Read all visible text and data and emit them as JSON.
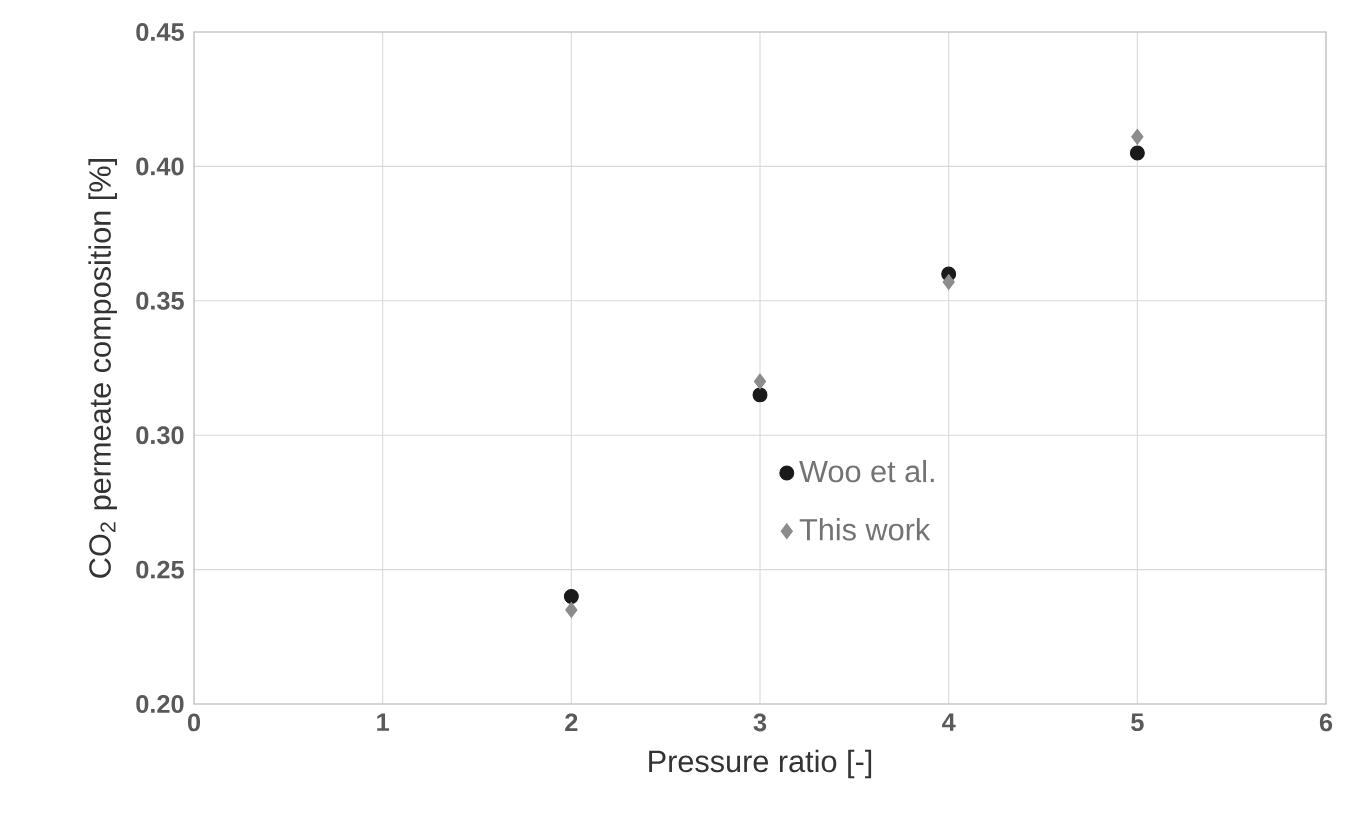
{
  "chart_data": {
    "type": "scatter",
    "xlabel": "Pressure ratio [-]",
    "ylabel": "CO$_{2}$ permeate composition [%]",
    "xlim": [
      0,
      6
    ],
    "xticks": [
      0,
      1,
      2,
      3,
      4,
      5,
      6
    ],
    "ylim": [
      0.2,
      0.45
    ],
    "yticks": [
      {
        "value": 0.2,
        "label": "0.20"
      },
      {
        "value": 0.25,
        "label": "0.25"
      },
      {
        "value": 0.3,
        "label": "0.30"
      },
      {
        "value": 0.35,
        "label": "0.35"
      },
      {
        "value": 0.4,
        "label": "0.40"
      },
      {
        "value": 0.45,
        "label": "0.45"
      }
    ],
    "grid": true,
    "legend": "right",
    "series": [
      {
        "name": "Woo et al.",
        "color": "#1a1a1a",
        "marker": "circle",
        "x": [
          2,
          3,
          4,
          5
        ],
        "values": [
          0.24,
          0.315,
          0.36,
          0.405
        ]
      },
      {
        "name": "This work",
        "color": "#8c8c8c",
        "marker": "diamond",
        "x": [
          2,
          3,
          4,
          5
        ],
        "values": [
          0.235,
          0.32,
          0.357,
          0.411
        ]
      }
    ]
  }
}
